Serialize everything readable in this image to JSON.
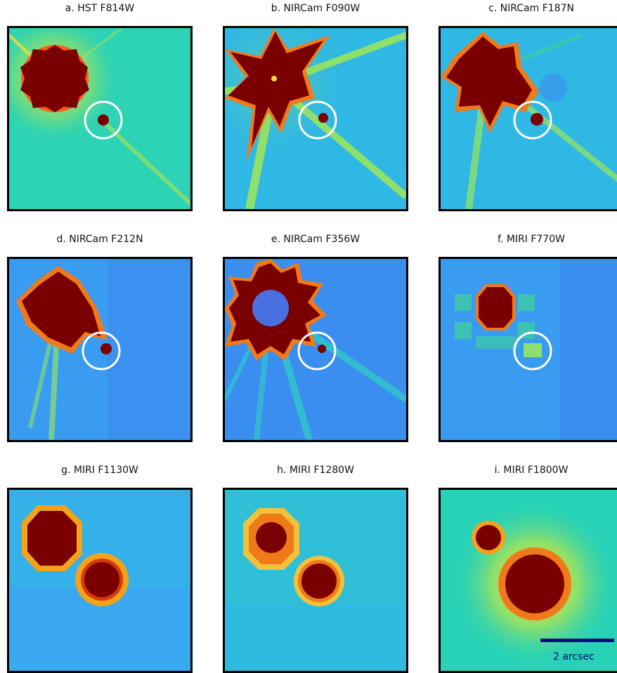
{
  "figure": {
    "panels": [
      {
        "title": "a. HST F814W"
      },
      {
        "title": "b. NIRCam F090W"
      },
      {
        "title": "c. NIRCam F187N"
      },
      {
        "title": "d. NIRCam F212N"
      },
      {
        "title": "e. NIRCam F356W"
      },
      {
        "title": "f. MIRI F770W"
      },
      {
        "title": "g. MIRI F1130W"
      },
      {
        "title": "h. MIRI F1280W"
      },
      {
        "title": "i. MIRI F1800W"
      }
    ],
    "scale_bar": {
      "label": "2 arcsec"
    },
    "colors": {
      "saturated": "#7a0000",
      "background_cyan": "#2fb8e4",
      "background_blue": "#3a8ef0",
      "background_teal": "#27d2b6",
      "circle": "#ffffff",
      "scale_bar": "#0a0a7a"
    }
  }
}
